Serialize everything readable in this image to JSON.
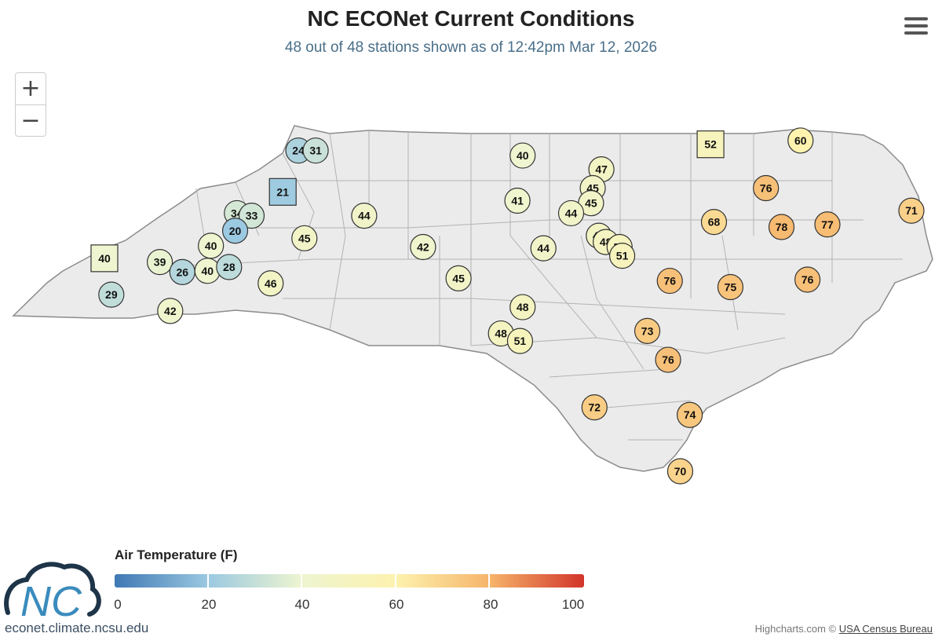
{
  "title": "NC ECONet Current Conditions",
  "subtitle": "48 out of 48 stations shown as of 12:42pm Mar 12, 2026",
  "zoom": {
    "in_label": "+",
    "out_label": "−"
  },
  "legend": {
    "title": "Air Temperature (F)",
    "ticks": [
      "0",
      "20",
      "40",
      "60",
      "80",
      "100"
    ],
    "colors": [
      "#3f78b4",
      "#9bc9e1",
      "#eef5d0",
      "#fdf2ae",
      "#f6b46a",
      "#d2342a"
    ],
    "range": [
      0,
      100
    ]
  },
  "logo_text": "NC",
  "site_label": "econet.climate.ncsu.edu",
  "credits": {
    "prefix": "Highcharts.com © ",
    "link": "USA Census Bureau"
  },
  "chart_data": {
    "type": "map",
    "variable": "Air Temperature (F)",
    "stations": [
      {
        "t": 24,
        "lon": -81.62,
        "lat": 36.43,
        "shape": "circle"
      },
      {
        "t": 31,
        "lon": -81.42,
        "lat": 36.43,
        "shape": "circle"
      },
      {
        "t": 21,
        "lon": -81.8,
        "lat": 36.1,
        "shape": "square"
      },
      {
        "t": 34,
        "lon": -82.33,
        "lat": 35.93,
        "shape": "circle"
      },
      {
        "t": 33,
        "lon": -82.16,
        "lat": 35.91,
        "shape": "circle"
      },
      {
        "t": 20,
        "lon": -82.35,
        "lat": 35.79,
        "shape": "circle"
      },
      {
        "t": 45,
        "lon": -81.55,
        "lat": 35.73,
        "shape": "circle"
      },
      {
        "t": 44,
        "lon": -80.86,
        "lat": 35.91,
        "shape": "circle"
      },
      {
        "t": 40,
        "lon": -82.63,
        "lat": 35.67,
        "shape": "circle"
      },
      {
        "t": 40,
        "lon": -83.86,
        "lat": 35.57,
        "shape": "square"
      },
      {
        "t": 39,
        "lon": -83.22,
        "lat": 35.54,
        "shape": "circle"
      },
      {
        "t": 26,
        "lon": -82.96,
        "lat": 35.46,
        "shape": "circle"
      },
      {
        "t": 40,
        "lon": -82.67,
        "lat": 35.47,
        "shape": "circle"
      },
      {
        "t": 28,
        "lon": -82.42,
        "lat": 35.5,
        "shape": "circle"
      },
      {
        "t": 46,
        "lon": -81.94,
        "lat": 35.37,
        "shape": "circle"
      },
      {
        "t": 29,
        "lon": -83.78,
        "lat": 35.28,
        "shape": "circle"
      },
      {
        "t": 42,
        "lon": -83.1,
        "lat": 35.15,
        "shape": "circle"
      },
      {
        "t": 42,
        "lon": -80.18,
        "lat": 35.66,
        "shape": "circle"
      },
      {
        "t": 45,
        "lon": -79.77,
        "lat": 35.41,
        "shape": "circle"
      },
      {
        "t": 40,
        "lon": -79.03,
        "lat": 36.39,
        "shape": "circle"
      },
      {
        "t": 41,
        "lon": -79.09,
        "lat": 36.03,
        "shape": "circle"
      },
      {
        "t": 44,
        "lon": -78.79,
        "lat": 35.65,
        "shape": "circle"
      },
      {
        "t": 48,
        "lon": -79.03,
        "lat": 35.18,
        "shape": "circle"
      },
      {
        "t": 48,
        "lon": -79.28,
        "lat": 34.97,
        "shape": "circle"
      },
      {
        "t": 51,
        "lon": -79.06,
        "lat": 34.91,
        "shape": "circle"
      },
      {
        "t": 47,
        "lon": -78.12,
        "lat": 36.28,
        "shape": "circle"
      },
      {
        "t": 45,
        "lon": -78.22,
        "lat": 36.13,
        "shape": "circle"
      },
      {
        "t": 45,
        "lon": -78.24,
        "lat": 36.01,
        "shape": "circle"
      },
      {
        "t": 44,
        "lon": -78.47,
        "lat": 35.93,
        "shape": "circle"
      },
      {
        "t": 47,
        "lon": -78.15,
        "lat": 35.75,
        "shape": "circle"
      },
      {
        "t": 48,
        "lon": -78.07,
        "lat": 35.7,
        "shape": "circle"
      },
      {
        "t": 50,
        "lon": -77.91,
        "lat": 35.66,
        "shape": "circle"
      },
      {
        "t": 51,
        "lon": -77.88,
        "lat": 35.59,
        "shape": "circle"
      },
      {
        "t": 52,
        "lon": -76.86,
        "lat": 36.48,
        "shape": "square"
      },
      {
        "t": 60,
        "lon": -75.82,
        "lat": 36.51,
        "shape": "circle"
      },
      {
        "t": 76,
        "lon": -76.22,
        "lat": 36.13,
        "shape": "circle"
      },
      {
        "t": 68,
        "lon": -76.82,
        "lat": 35.86,
        "shape": "circle"
      },
      {
        "t": 78,
        "lon": -76.04,
        "lat": 35.82,
        "shape": "circle"
      },
      {
        "t": 77,
        "lon": -75.51,
        "lat": 35.84,
        "shape": "circle"
      },
      {
        "t": 71,
        "lon": -74.54,
        "lat": 35.95,
        "shape": "circle"
      },
      {
        "t": 76,
        "lon": -77.33,
        "lat": 35.39,
        "shape": "circle"
      },
      {
        "t": 75,
        "lon": -76.63,
        "lat": 35.34,
        "shape": "circle"
      },
      {
        "t": 76,
        "lon": -75.74,
        "lat": 35.4,
        "shape": "circle"
      },
      {
        "t": 73,
        "lon": -77.59,
        "lat": 34.99,
        "shape": "circle"
      },
      {
        "t": 76,
        "lon": -77.35,
        "lat": 34.76,
        "shape": "circle"
      },
      {
        "t": 72,
        "lon": -78.2,
        "lat": 34.38,
        "shape": "circle"
      },
      {
        "t": 74,
        "lon": -77.1,
        "lat": 34.32,
        "shape": "circle"
      },
      {
        "t": 70,
        "lon": -77.21,
        "lat": 33.87,
        "shape": "circle"
      }
    ]
  }
}
